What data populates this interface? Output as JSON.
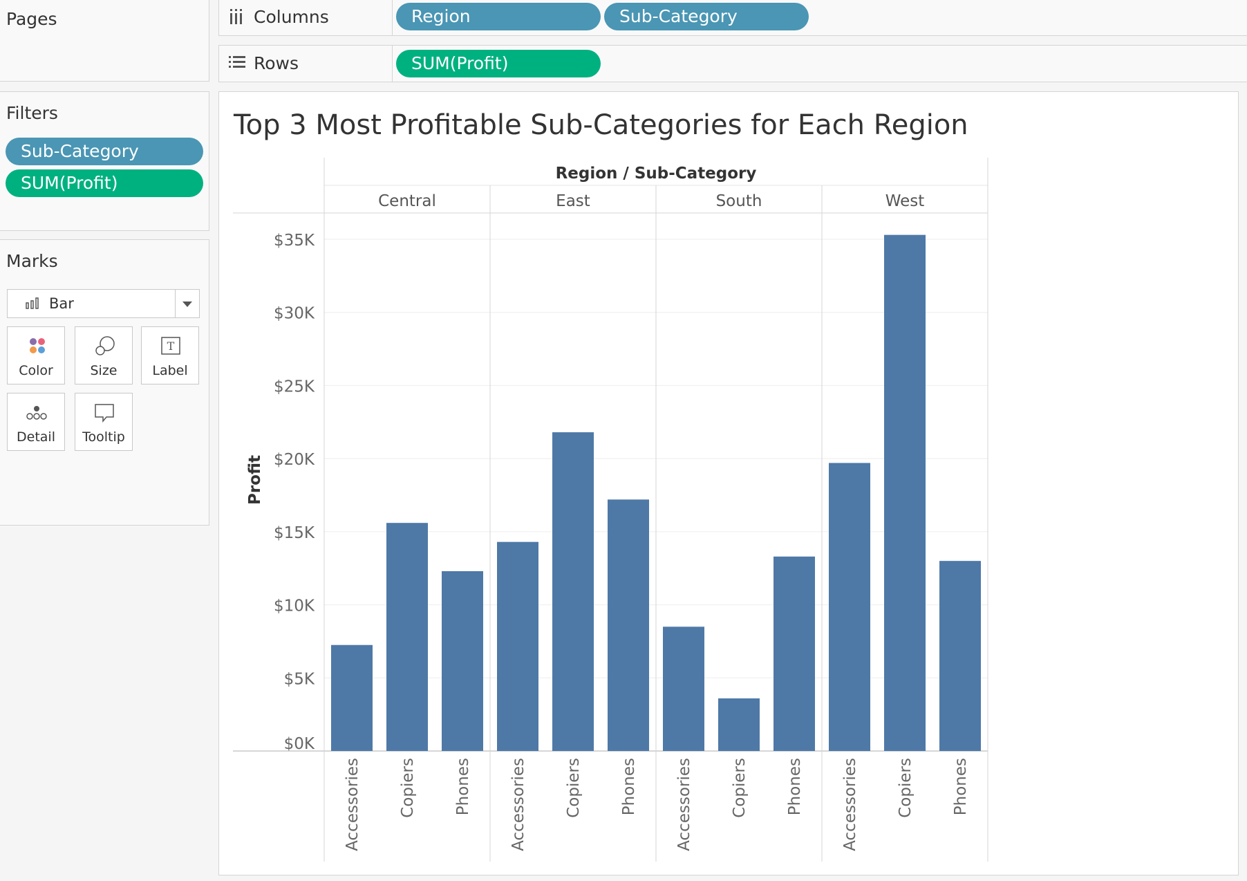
{
  "pages": {
    "title": "Pages"
  },
  "columns_shelf": {
    "label": "Columns",
    "pills": [
      "Region",
      "Sub-Category"
    ]
  },
  "rows_shelf": {
    "label": "Rows",
    "pills": [
      "SUM(Profit)"
    ]
  },
  "filters": {
    "title": "Filters",
    "pills": [
      "Sub-Category",
      "SUM(Profit)"
    ]
  },
  "marks": {
    "title": "Marks",
    "type": "Bar",
    "buttons": {
      "color": "Color",
      "size": "Size",
      "label": "Label",
      "detail": "Detail",
      "tooltip": "Tooltip"
    }
  },
  "colors": {
    "dimension_pill": "#4a96b4",
    "measure_pill": "#00b180",
    "bar": "#4e79a7"
  },
  "chart_data": {
    "type": "bar",
    "title": "Top 3 Most Profitable Sub-Categories for Each Region",
    "header_title": "Region / Sub-Category",
    "ylabel": "Profit",
    "ylim": [
      0,
      37000
    ],
    "yticks": [
      0,
      5000,
      10000,
      15000,
      20000,
      25000,
      30000,
      35000
    ],
    "ytick_labels": [
      "$0K",
      "$5K",
      "$10K",
      "$15K",
      "$20K",
      "$25K",
      "$30K",
      "$35K"
    ],
    "grid": true,
    "regions": [
      {
        "name": "Central",
        "categories": [
          "Accessories",
          "Copiers",
          "Phones"
        ],
        "values": [
          7250,
          15600,
          12300
        ]
      },
      {
        "name": "East",
        "categories": [
          "Accessories",
          "Copiers",
          "Phones"
        ],
        "values": [
          14300,
          21800,
          17200
        ]
      },
      {
        "name": "South",
        "categories": [
          "Accessories",
          "Copiers",
          "Phones"
        ],
        "values": [
          8500,
          3600,
          13300
        ]
      },
      {
        "name": "West",
        "categories": [
          "Accessories",
          "Copiers",
          "Phones"
        ],
        "values": [
          19700,
          35300,
          13000
        ]
      }
    ]
  }
}
